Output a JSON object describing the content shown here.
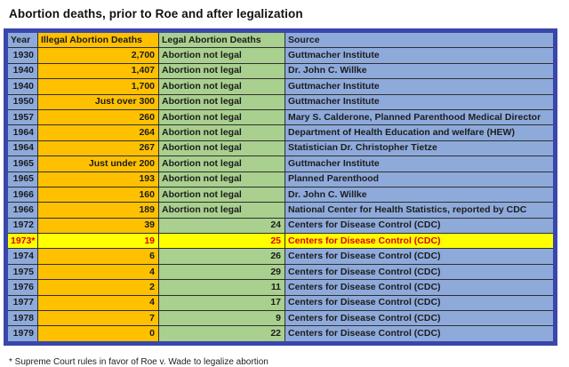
{
  "title": "Abortion deaths, prior to Roe and after legalization",
  "footnote": "* Supreme Court rules in favor of Roe v. Wade to legalize abortion",
  "colors": {
    "year_col_bg": "#8eaadb",
    "illegal_col_bg": "#ffc000",
    "legal_col_bg": "#a9d08e",
    "source_col_bg": "#8eaadb",
    "highlight_bg": "#ffff00",
    "highlight_text": "#e00000",
    "outer_border": "#3947ab",
    "grid_line": "#2f2f2f"
  },
  "chart_data": {
    "type": "table",
    "title": "Abortion deaths, prior to Roe and after legalization",
    "columns": [
      "Year",
      "Illegal Abortion Deaths",
      "Legal Abortion Deaths",
      "Source"
    ],
    "rows": [
      {
        "year": "1930",
        "illegal": "2,700",
        "legal": "Abortion not legal",
        "source": "Guttmacher Institute",
        "highlight": false
      },
      {
        "year": "1940",
        "illegal": "1,407",
        "legal": "Abortion not legal",
        "source": "Dr. John C. Willke",
        "highlight": false
      },
      {
        "year": "1940",
        "illegal": "1,700",
        "legal": "Abortion not legal",
        "source": "Guttmacher Institute",
        "highlight": false
      },
      {
        "year": "1950",
        "illegal": "Just over 300",
        "legal": "Abortion not legal",
        "source": "Guttmacher Institute",
        "highlight": false
      },
      {
        "year": "1957",
        "illegal": "260",
        "legal": "Abortion not legal",
        "source": "Mary S. Calderone, Planned Parenthood Medical Director",
        "highlight": false
      },
      {
        "year": "1964",
        "illegal": "264",
        "legal": "Abortion not legal",
        "source": "Department of Health Education and welfare (HEW)",
        "highlight": false
      },
      {
        "year": "1964",
        "illegal": "267",
        "legal": "Abortion not legal",
        "source": "Statistician Dr. Christopher Tietze",
        "highlight": false
      },
      {
        "year": "1965",
        "illegal": "Just under 200",
        "legal": "Abortion not legal",
        "source": "Guttmacher Institute",
        "highlight": false
      },
      {
        "year": "1965",
        "illegal": "193",
        "legal": "Abortion not legal",
        "source": "Planned Parenthood",
        "highlight": false
      },
      {
        "year": "1966",
        "illegal": "160",
        "legal": "Abortion not legal",
        "source": "Dr. John C. Willke",
        "highlight": false
      },
      {
        "year": "1966",
        "illegal": "189",
        "legal": "Abortion not legal",
        "source": "National Center for Health Statistics, reported by CDC",
        "highlight": false
      },
      {
        "year": "1972",
        "illegal": "39",
        "legal": "24",
        "source": "Centers for Disease Control (CDC)",
        "highlight": false
      },
      {
        "year": "1973*",
        "illegal": "19",
        "legal": "25",
        "source": "Centers for Disease Control (CDC)",
        "highlight": true
      },
      {
        "year": "1974",
        "illegal": "6",
        "legal": "26",
        "source": "Centers for Disease Control (CDC)",
        "highlight": false
      },
      {
        "year": "1975",
        "illegal": "4",
        "legal": "29",
        "source": "Centers for Disease Control (CDC)",
        "highlight": false
      },
      {
        "year": "1976",
        "illegal": "2",
        "legal": "11",
        "source": "Centers for Disease Control (CDC)",
        "highlight": false
      },
      {
        "year": "1977",
        "illegal": "4",
        "legal": "17",
        "source": "Centers for Disease Control (CDC)",
        "highlight": false
      },
      {
        "year": "1978",
        "illegal": "7",
        "legal": "9",
        "source": "Centers for Disease Control (CDC)",
        "highlight": false
      },
      {
        "year": "1979",
        "illegal": "0",
        "legal": "22",
        "source": "Centers for Disease Control (CDC)",
        "highlight": false
      }
    ]
  }
}
